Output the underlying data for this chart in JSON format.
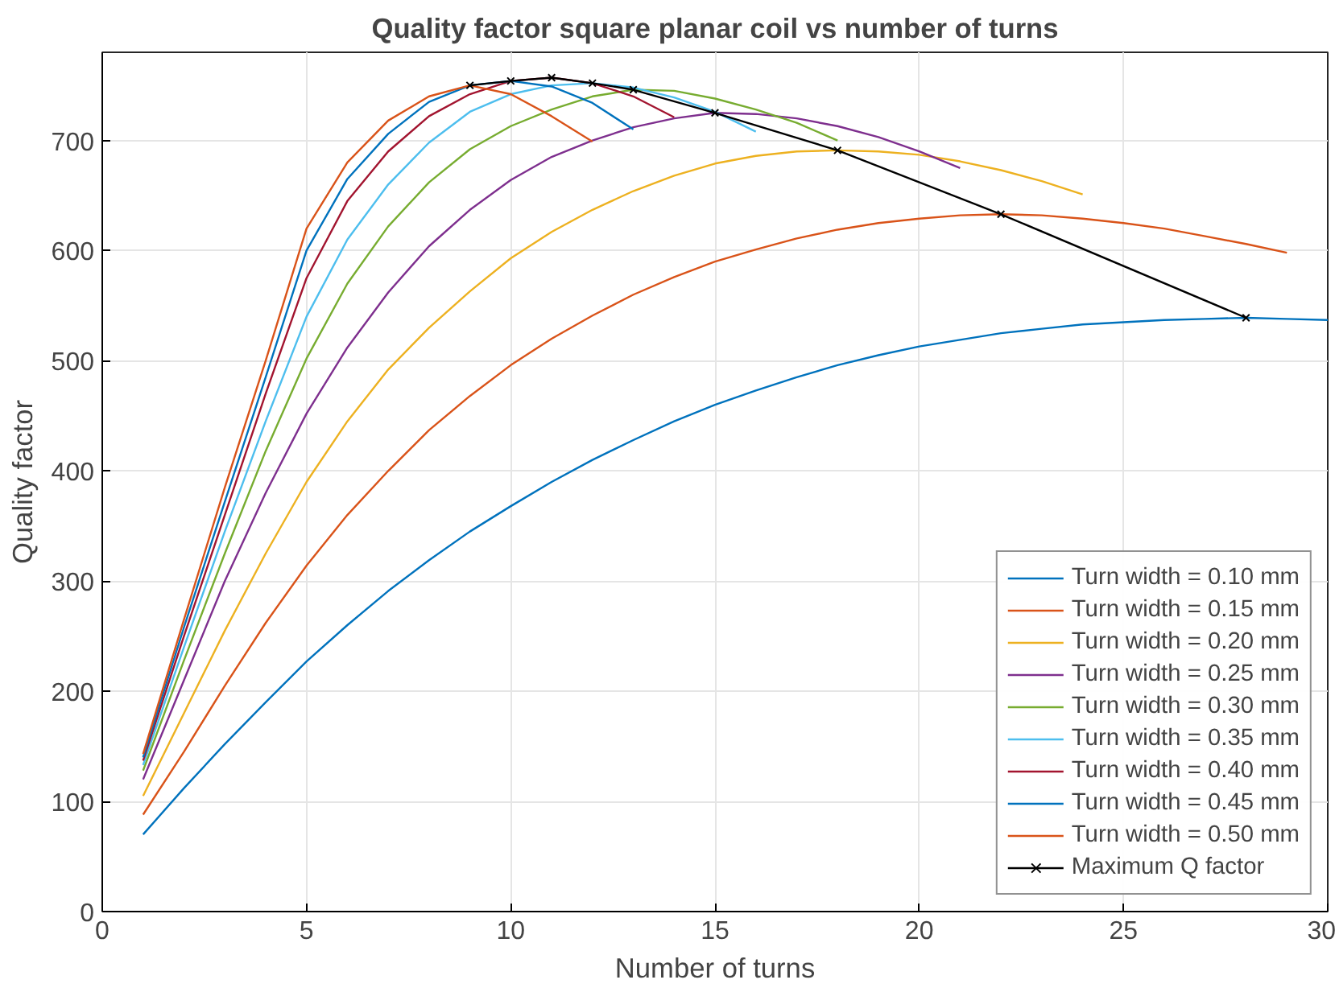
{
  "chart_data": {
    "type": "line",
    "title": "Quality factor square planar coil vs number of turns",
    "xlabel": "Number of turns",
    "ylabel": "Quality factor",
    "xlim": [
      0,
      30
    ],
    "xticks": [
      0,
      5,
      10,
      15,
      20,
      25,
      30
    ],
    "ylim": [
      0,
      780
    ],
    "yticks": [
      0,
      100,
      200,
      300,
      400,
      500,
      600,
      700
    ],
    "grid": true,
    "legend": "bottom right",
    "series": [
      {
        "name": "Turn width = 0.10 mm",
        "color": "#0072bd",
        "x": [
          1,
          2,
          3,
          4,
          5,
          6,
          7,
          8,
          9,
          10,
          11,
          12,
          13,
          14,
          15,
          16,
          17,
          18,
          19,
          20,
          21,
          22,
          23,
          24,
          25,
          26,
          27,
          28,
          29,
          30
        ],
        "values": [
          70,
          112,
          152,
          190,
          227,
          260,
          291,
          319,
          345,
          368,
          390,
          410,
          428,
          445,
          460,
          473,
          485,
          496,
          505,
          513,
          519,
          525,
          529,
          533,
          535,
          537,
          538,
          539,
          538,
          537
        ]
      },
      {
        "name": "Turn width = 0.15 mm",
        "color": "#d95319",
        "x": [
          1,
          2,
          3,
          4,
          5,
          6,
          7,
          8,
          9,
          10,
          11,
          12,
          13,
          14,
          15,
          16,
          17,
          18,
          19,
          20,
          21,
          22,
          23,
          24,
          25,
          26,
          27,
          28,
          29
        ],
        "values": [
          88,
          145,
          205,
          262,
          314,
          360,
          400,
          437,
          468,
          496,
          520,
          541,
          560,
          576,
          590,
          601,
          611,
          619,
          625,
          629,
          632,
          633,
          632,
          629,
          625,
          620,
          613,
          606,
          598
        ]
      },
      {
        "name": "Turn width = 0.20 mm",
        "color": "#edb120",
        "x": [
          1,
          2,
          3,
          4,
          5,
          6,
          7,
          8,
          9,
          10,
          11,
          12,
          13,
          14,
          15,
          16,
          17,
          18,
          19,
          20,
          21,
          22,
          23,
          24
        ],
        "values": [
          105,
          180,
          255,
          325,
          390,
          445,
          492,
          530,
          563,
          593,
          617,
          637,
          654,
          668,
          679,
          686,
          690,
          691,
          690,
          687,
          681,
          673,
          663,
          651
        ]
      },
      {
        "name": "Turn width = 0.25 mm",
        "color": "#7e2f8e",
        "x": [
          1,
          2,
          3,
          4,
          5,
          6,
          7,
          8,
          9,
          10,
          11,
          12,
          13,
          14,
          15,
          16,
          17,
          18,
          19,
          20,
          21
        ],
        "values": [
          120,
          210,
          300,
          380,
          452,
          512,
          562,
          604,
          637,
          664,
          685,
          700,
          712,
          720,
          725,
          724,
          720,
          713,
          703,
          690,
          675
        ]
      },
      {
        "name": "Turn width = 0.30 mm",
        "color": "#77ac30",
        "x": [
          1,
          2,
          3,
          4,
          5,
          6,
          7,
          8,
          9,
          10,
          11,
          12,
          13,
          14,
          15,
          16,
          17,
          18
        ],
        "values": [
          128,
          228,
          325,
          418,
          502,
          570,
          622,
          662,
          692,
          713,
          728,
          740,
          746,
          745,
          738,
          728,
          716,
          700
        ]
      },
      {
        "name": "Turn width = 0.35 mm",
        "color": "#4dbeee",
        "x": [
          1,
          2,
          3,
          4,
          5,
          6,
          7,
          8,
          9,
          10,
          11,
          12,
          13,
          14,
          15,
          16
        ],
        "values": [
          133,
          240,
          345,
          445,
          540,
          610,
          660,
          698,
          726,
          742,
          750,
          752,
          748,
          739,
          726,
          708
        ]
      },
      {
        "name": "Turn width = 0.40 mm",
        "color": "#a2142f",
        "x": [
          1,
          2,
          3,
          4,
          5,
          6,
          7,
          8,
          9,
          10,
          11,
          12,
          13,
          14
        ],
        "values": [
          137,
          250,
          360,
          470,
          575,
          645,
          690,
          722,
          742,
          754,
          757,
          752,
          740,
          721
        ]
      },
      {
        "name": "Turn width = 0.45 mm",
        "color": "#0072bd",
        "x": [
          1,
          2,
          3,
          4,
          5,
          6,
          7,
          8,
          9,
          10,
          11,
          12,
          13
        ],
        "values": [
          140,
          258,
          372,
          485,
          600,
          665,
          706,
          735,
          750,
          754,
          749,
          734,
          710
        ]
      },
      {
        "name": "Turn width = 0.50 mm",
        "color": "#d95319",
        "x": [
          1,
          2,
          3,
          4,
          5,
          6,
          7,
          8,
          9,
          10,
          11,
          12
        ],
        "values": [
          143,
          265,
          385,
          500,
          620,
          680,
          718,
          740,
          750,
          742,
          722,
          699
        ]
      },
      {
        "name": "Maximum Q factor",
        "color": "#000000",
        "marker": "cross",
        "x": [
          9,
          10,
          11,
          12,
          13,
          15,
          18,
          22,
          28
        ],
        "values": [
          750,
          754,
          757,
          752,
          746,
          725,
          691,
          633,
          539
        ]
      }
    ]
  }
}
